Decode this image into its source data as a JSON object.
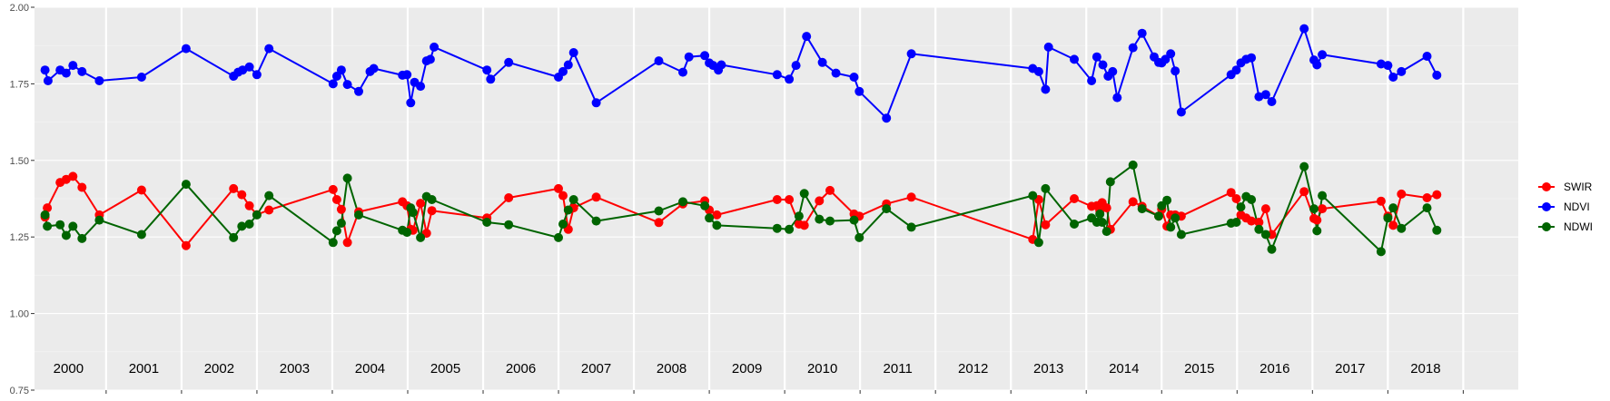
{
  "chart_data": {
    "type": "line",
    "x_range": [
      1999.55,
      2019.23
    ],
    "ylim": [
      0.75,
      2.0
    ],
    "y_ticks": [
      0.75,
      1.0,
      1.25,
      1.5,
      1.75,
      2.0
    ],
    "y_tick_labels": [
      "0.75",
      "1.00",
      "1.25",
      "1.50",
      "1.75",
      "2.00"
    ],
    "year_boundaries": [
      2000.5,
      2001.5,
      2002.5,
      2003.5,
      2004.5,
      2005.5,
      2006.5,
      2007.5,
      2008.5,
      2009.5,
      2010.5,
      2011.5,
      2012.5,
      2013.5,
      2014.5,
      2015.5,
      2016.5,
      2017.5,
      2018.5
    ],
    "year_labels": [
      {
        "x": 2000.0,
        "label": "2000"
      },
      {
        "x": 2001.0,
        "label": "2001"
      },
      {
        "x": 2002.0,
        "label": "2002"
      },
      {
        "x": 2003.0,
        "label": "2003"
      },
      {
        "x": 2004.0,
        "label": "2004"
      },
      {
        "x": 2005.0,
        "label": "2005"
      },
      {
        "x": 2006.0,
        "label": "2006"
      },
      {
        "x": 2007.0,
        "label": "2007"
      },
      {
        "x": 2008.0,
        "label": "2008"
      },
      {
        "x": 2009.0,
        "label": "2009"
      },
      {
        "x": 2010.0,
        "label": "2010"
      },
      {
        "x": 2011.0,
        "label": "2011"
      },
      {
        "x": 2012.0,
        "label": "2012"
      },
      {
        "x": 2013.0,
        "label": "2013"
      },
      {
        "x": 2014.0,
        "label": "2014"
      },
      {
        "x": 2015.0,
        "label": "2015"
      },
      {
        "x": 2016.0,
        "label": "2016"
      },
      {
        "x": 2017.0,
        "label": "2017"
      },
      {
        "x": 2018.0,
        "label": "2018"
      }
    ],
    "grid": true,
    "legend_position": "right",
    "series": [
      {
        "name": "SWIR",
        "color": "#ff0000",
        "x": [
          1999.69,
          1999.72,
          1999.89,
          1999.97,
          2000.06,
          2000.18,
          2000.41,
          2000.97,
          2001.56,
          2002.19,
          2002.3,
          2002.4,
          2002.5,
          2002.66,
          2003.51,
          2003.56,
          2003.62,
          2003.7,
          2003.85,
          2004.43,
          2004.49,
          2004.54,
          2004.57,
          2004.67,
          2004.75,
          2004.82,
          2005.55,
          2005.84,
          2006.5,
          2006.56,
          2006.63,
          2006.7,
          2007.0,
          2007.83,
          2008.15,
          2008.44,
          2008.5,
          2008.6,
          2009.4,
          2009.56,
          2009.69,
          2009.76,
          2009.96,
          2010.1,
          2010.42,
          2010.49,
          2010.85,
          2011.18,
          2012.79,
          2012.87,
          2012.96,
          2013.34,
          2013.57,
          2013.64,
          2013.68,
          2013.71,
          2013.77,
          2013.82,
          2014.12,
          2014.24,
          2014.46,
          2014.5,
          2014.57,
          2014.62,
          2014.68,
          2014.76,
          2015.42,
          2015.49,
          2015.55,
          2015.62,
          2015.69,
          2015.79,
          2015.88,
          2015.96,
          2016.39,
          2016.52,
          2016.56,
          2016.63,
          2017.41,
          2017.5,
          2017.57,
          2017.68,
          2018.02,
          2018.15
        ],
        "values": [
          1.315,
          1.345,
          1.428,
          1.438,
          1.448,
          1.412,
          1.322,
          1.403,
          1.222,
          1.408,
          1.388,
          1.352,
          1.323,
          1.338,
          1.405,
          1.372,
          1.34,
          1.232,
          1.332,
          1.365,
          1.352,
          1.275,
          1.272,
          1.36,
          1.262,
          1.336,
          1.312,
          1.378,
          1.408,
          1.385,
          1.275,
          1.345,
          1.38,
          1.297,
          1.358,
          1.368,
          1.338,
          1.322,
          1.372,
          1.372,
          1.292,
          1.288,
          1.368,
          1.402,
          1.325,
          1.318,
          1.358,
          1.38,
          1.242,
          1.372,
          1.29,
          1.375,
          1.35,
          1.352,
          1.335,
          1.362,
          1.345,
          1.275,
          1.365,
          1.35,
          1.318,
          1.34,
          1.285,
          1.322,
          1.322,
          1.318,
          1.395,
          1.375,
          1.322,
          1.312,
          1.302,
          1.298,
          1.342,
          1.258,
          1.398,
          1.31,
          1.305,
          1.342,
          1.367,
          1.318,
          1.288,
          1.39,
          1.378,
          1.388
        ]
      },
      {
        "name": "NDVI",
        "color": "#0000ff",
        "x": [
          1999.69,
          1999.73,
          1999.89,
          1999.97,
          2000.06,
          2000.18,
          2000.41,
          2000.97,
          2001.56,
          2002.19,
          2002.25,
          2002.31,
          2002.4,
          2002.5,
          2002.66,
          2003.51,
          2003.56,
          2003.62,
          2003.7,
          2003.85,
          2004.0,
          2004.05,
          2004.43,
          2004.49,
          2004.54,
          2004.59,
          2004.67,
          2004.75,
          2004.8,
          2004.85,
          2005.55,
          2005.6,
          2005.84,
          2006.5,
          2006.56,
          2006.63,
          2006.7,
          2007.0,
          2007.83,
          2008.15,
          2008.23,
          2008.44,
          2008.5,
          2008.55,
          2008.62,
          2008.66,
          2009.4,
          2009.56,
          2009.65,
          2009.79,
          2010.0,
          2010.18,
          2010.42,
          2010.49,
          2010.85,
          2011.18,
          2012.79,
          2012.87,
          2012.96,
          2013.0,
          2013.34,
          2013.57,
          2013.64,
          2013.72,
          2013.79,
          2013.85,
          2013.91,
          2014.12,
          2014.24,
          2014.4,
          2014.46,
          2014.5,
          2014.55,
          2014.62,
          2014.68,
          2014.76,
          2015.42,
          2015.49,
          2015.55,
          2015.62,
          2015.69,
          2015.79,
          2015.88,
          2015.96,
          2016.39,
          2016.52,
          2016.56,
          2016.63,
          2017.41,
          2017.5,
          2017.57,
          2017.68,
          2018.02,
          2018.15
        ],
        "values": [
          1.795,
          1.76,
          1.795,
          1.785,
          1.81,
          1.79,
          1.76,
          1.772,
          1.865,
          1.775,
          1.788,
          1.795,
          1.805,
          1.78,
          1.865,
          1.75,
          1.775,
          1.795,
          1.748,
          1.725,
          1.79,
          1.8,
          1.778,
          1.78,
          1.688,
          1.755,
          1.742,
          1.825,
          1.83,
          1.87,
          1.795,
          1.765,
          1.82,
          1.772,
          1.79,
          1.812,
          1.852,
          1.688,
          1.825,
          1.788,
          1.838,
          1.842,
          1.818,
          1.81,
          1.795,
          1.812,
          1.78,
          1.765,
          1.81,
          1.905,
          1.82,
          1.785,
          1.772,
          1.725,
          1.638,
          1.848,
          1.8,
          1.79,
          1.732,
          1.87,
          1.83,
          1.76,
          1.838,
          1.812,
          1.775,
          1.79,
          1.705,
          1.868,
          1.915,
          1.838,
          1.82,
          1.818,
          1.83,
          1.848,
          1.792,
          1.658,
          1.78,
          1.795,
          1.818,
          1.83,
          1.835,
          1.708,
          1.715,
          1.692,
          1.93,
          1.828,
          1.812,
          1.845,
          1.815,
          1.81,
          1.772,
          1.79,
          1.84,
          1.778
        ]
      },
      {
        "name": "NDWI",
        "color": "#006400",
        "x": [
          1999.69,
          1999.72,
          1999.89,
          1999.97,
          2000.06,
          2000.18,
          2000.41,
          2000.97,
          2001.56,
          2002.19,
          2002.3,
          2002.4,
          2002.5,
          2002.66,
          2003.51,
          2003.56,
          2003.62,
          2003.7,
          2003.85,
          2004.43,
          2004.49,
          2004.54,
          2004.57,
          2004.67,
          2004.75,
          2004.82,
          2005.55,
          2005.84,
          2006.5,
          2006.56,
          2006.63,
          2006.7,
          2007.0,
          2007.83,
          2008.15,
          2008.44,
          2008.5,
          2008.6,
          2009.4,
          2009.56,
          2009.69,
          2009.76,
          2009.96,
          2010.1,
          2010.42,
          2010.49,
          2010.85,
          2011.18,
          2012.79,
          2012.87,
          2012.96,
          2013.34,
          2013.57,
          2013.64,
          2013.68,
          2013.71,
          2013.77,
          2013.82,
          2014.12,
          2014.24,
          2014.46,
          2014.5,
          2014.57,
          2014.62,
          2014.68,
          2014.76,
          2015.42,
          2015.49,
          2015.55,
          2015.62,
          2015.69,
          2015.79,
          2015.88,
          2015.96,
          2016.39,
          2016.52,
          2016.56,
          2016.63,
          2017.41,
          2017.5,
          2017.57,
          2017.68,
          2018.02,
          2018.15
        ],
        "values": [
          1.322,
          1.285,
          1.29,
          1.255,
          1.285,
          1.245,
          1.305,
          1.258,
          1.422,
          1.248,
          1.285,
          1.292,
          1.322,
          1.385,
          1.232,
          1.27,
          1.295,
          1.442,
          1.322,
          1.272,
          1.265,
          1.345,
          1.33,
          1.248,
          1.382,
          1.372,
          1.298,
          1.29,
          1.248,
          1.292,
          1.338,
          1.372,
          1.302,
          1.335,
          1.365,
          1.352,
          1.312,
          1.288,
          1.278,
          1.275,
          1.318,
          1.392,
          1.308,
          1.302,
          1.305,
          1.248,
          1.342,
          1.282,
          1.385,
          1.232,
          1.408,
          1.292,
          1.312,
          1.298,
          1.325,
          1.298,
          1.268,
          1.43,
          1.485,
          1.342,
          1.318,
          1.352,
          1.37,
          1.282,
          1.312,
          1.258,
          1.295,
          1.298,
          1.348,
          1.382,
          1.372,
          1.275,
          1.258,
          1.21,
          1.48,
          1.342,
          1.27,
          1.385,
          1.202,
          1.312,
          1.345,
          1.278,
          1.345,
          1.272
        ]
      }
    ]
  }
}
